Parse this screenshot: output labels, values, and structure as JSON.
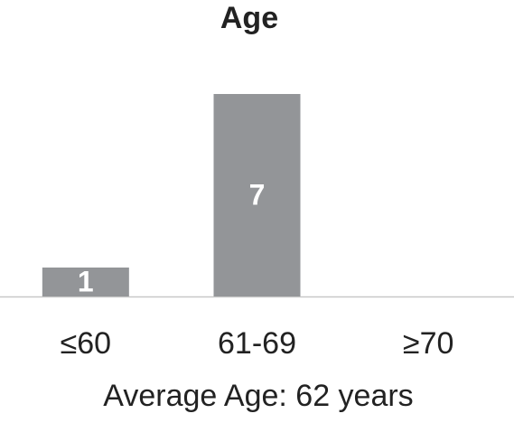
{
  "chart_data": {
    "type": "bar",
    "title": "Age",
    "annotation": "Average Age: 62 years",
    "categories": [
      "≤60",
      "61-69",
      "≥70"
    ],
    "values": [
      1,
      7,
      0
    ],
    "color": "#939598",
    "ylim": [
      0,
      7
    ]
  }
}
